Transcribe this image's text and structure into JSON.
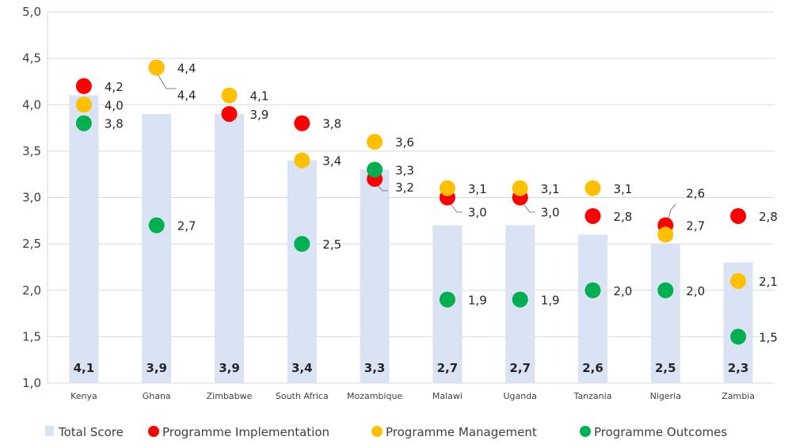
{
  "chart_data": {
    "type": "bar",
    "categories": [
      "Kenya",
      "Ghana",
      "Zimbabwe",
      "South Africa",
      "Mozambique",
      "Malawi",
      "Uganda",
      "Tanzania",
      "Nigeria",
      "Zambia"
    ],
    "ylim": [
      1.0,
      5.0
    ],
    "yticks": [
      "1,0",
      "1,5",
      "2,0",
      "2,5",
      "3,0",
      "3,5",
      "4,0",
      "4,5",
      "5,0"
    ],
    "grid": true,
    "legend_position": "bottom",
    "series": [
      {
        "name": "Total Score",
        "kind": "bar",
        "color": "#dae3f3",
        "values": [
          4.1,
          3.9,
          3.9,
          3.4,
          3.3,
          2.7,
          2.7,
          2.6,
          2.5,
          2.3
        ],
        "labels": [
          "4,1",
          "3,9",
          "3,9",
          "3,4",
          "3,3",
          "2,7",
          "2,7",
          "2,6",
          "2,5",
          "2,3"
        ]
      },
      {
        "name": "Programme Implementation",
        "kind": "point",
        "color": "#ff0000",
        "values": [
          4.2,
          4.4,
          3.9,
          3.8,
          3.2,
          3.0,
          3.0,
          2.8,
          2.7,
          2.8
        ],
        "labels": [
          "4,2",
          "4,4",
          "3,9",
          "3,8",
          "3,2",
          "3,0",
          "3,0",
          "2,8",
          "2,7",
          "2,8"
        ]
      },
      {
        "name": "Programme Management",
        "kind": "point",
        "color": "#ffc000",
        "values": [
          4.0,
          4.4,
          4.1,
          3.4,
          3.6,
          3.1,
          3.1,
          3.1,
          2.6,
          2.1
        ],
        "labels": [
          "4,0",
          "4,4",
          "4,1",
          "3,4",
          "3,6",
          "3,1",
          "3,1",
          "3,1",
          "2,6",
          "2,1"
        ]
      },
      {
        "name": "Programme Outcomes",
        "kind": "point",
        "color": "#00b050",
        "values": [
          3.8,
          2.7,
          null,
          2.5,
          3.3,
          1.9,
          1.9,
          2.0,
          2.0,
          1.5
        ],
        "labels": [
          "3,8",
          "2,7",
          "",
          "2,5",
          "3,3",
          "1,9",
          "1,9",
          "2,0",
          "2,0",
          "1,5"
        ]
      }
    ]
  }
}
